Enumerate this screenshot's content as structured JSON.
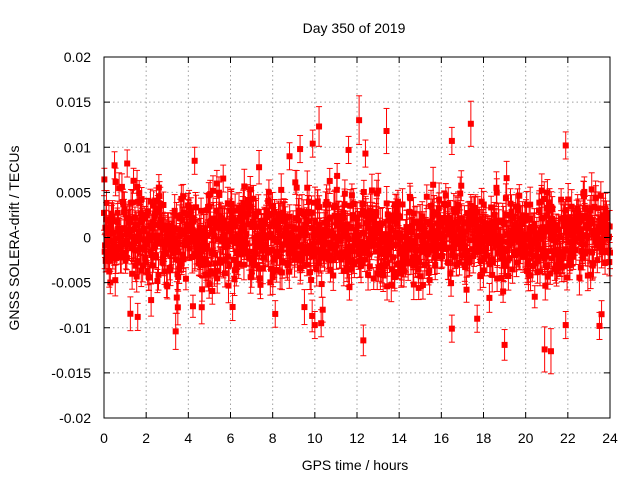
{
  "chart_data": {
    "type": "scatter",
    "title": "Day 350 of 2019",
    "xlabel": "GPS time / hours",
    "ylabel": "GNSS SOLERA-drift / TECUs",
    "xlim": [
      0,
      24
    ],
    "ylim": [
      -0.02,
      0.02
    ],
    "xticks": [
      0,
      2,
      4,
      6,
      8,
      10,
      12,
      14,
      16,
      18,
      20,
      22,
      24
    ],
    "yticks": [
      -0.02,
      -0.015,
      -0.01,
      -0.005,
      0,
      0.005,
      0.01,
      0.015,
      0.02
    ],
    "xtick_labels": [
      "0",
      "2",
      "4",
      "6",
      "8",
      "10",
      "12",
      "14",
      "16",
      "18",
      "20",
      "22",
      "24"
    ],
    "ytick_labels": [
      "-0.02",
      "-0.015",
      "-0.01",
      "-0.005",
      "0",
      "0.005",
      "0.01",
      "0.015",
      "0.02"
    ],
    "grid": true,
    "legend": "none",
    "series_color": "#ff0000",
    "series": [
      {
        "marker": "square",
        "error_bars": true,
        "points": [
          {
            "x": 0.5,
            "y": 0.008,
            "err": 0.0015
          },
          {
            "x": 1.1,
            "y": 0.0082,
            "err": 0.0015
          },
          {
            "x": 1.6,
            "y": -0.0088,
            "err": 0.0015
          },
          {
            "x": 3.4,
            "y": -0.0104,
            "err": 0.002
          },
          {
            "x": 4.3,
            "y": 0.0085,
            "err": 0.0015
          },
          {
            "x": 6.1,
            "y": -0.0077,
            "err": 0.0015
          },
          {
            "x": 8.8,
            "y": 0.009,
            "err": 0.0015
          },
          {
            "x": 9.3,
            "y": 0.0098,
            "err": 0.0015
          },
          {
            "x": 9.9,
            "y": 0.0104,
            "err": 0.0015
          },
          {
            "x": 10.2,
            "y": 0.0123,
            "err": 0.0022
          },
          {
            "x": 10.0,
            "y": -0.0097,
            "err": 0.0015
          },
          {
            "x": 10.3,
            "y": -0.0095,
            "err": 0.0015
          },
          {
            "x": 11.6,
            "y": 0.0097,
            "err": 0.0015
          },
          {
            "x": 12.1,
            "y": 0.013,
            "err": 0.0027
          },
          {
            "x": 12.4,
            "y": 0.0093,
            "err": 0.0015
          },
          {
            "x": 12.3,
            "y": -0.0114,
            "err": 0.0017
          },
          {
            "x": 13.4,
            "y": 0.0118,
            "err": 0.0025
          },
          {
            "x": 16.5,
            "y": 0.0107,
            "err": 0.0015
          },
          {
            "x": 16.5,
            "y": -0.0101,
            "err": 0.0015
          },
          {
            "x": 17.4,
            "y": 0.0126,
            "err": 0.0025
          },
          {
            "x": 17.7,
            "y": -0.009,
            "err": 0.0015
          },
          {
            "x": 19.0,
            "y": -0.0119,
            "err": 0.0017
          },
          {
            "x": 20.9,
            "y": -0.0124,
            "err": 0.0025
          },
          {
            "x": 21.2,
            "y": -0.0126,
            "err": 0.0025
          },
          {
            "x": 21.9,
            "y": 0.0102,
            "err": 0.0015
          },
          {
            "x": 21.9,
            "y": -0.0097,
            "err": 0.0015
          },
          {
            "x": 23.5,
            "y": -0.0098,
            "err": 0.0015
          },
          {
            "x": 23.6,
            "y": -0.0085,
            "err": 0.0015
          }
        ],
        "dense_band": {
          "x_start": 0,
          "x_end": 24,
          "n_points": 1440,
          "y_std": 0.0025,
          "err_typical": 0.0015
        }
      }
    ]
  }
}
